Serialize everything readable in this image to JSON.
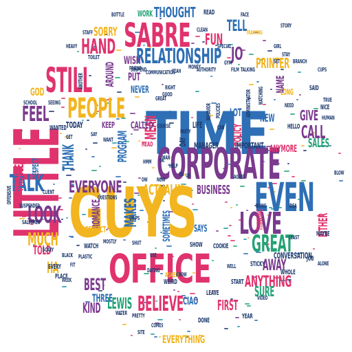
{
  "palette": {
    "pink": "#e0336e",
    "blue": "#2e6fb5",
    "yellow": "#f2b51f",
    "purple": "#7a3a8e",
    "green": "#23a275",
    "navy": "#1e3a6e",
    "teal": "#1e9aa5"
  },
  "words": [
    {
      "text": "TIME",
      "color": "blue"
    },
    {
      "text": "GUYS",
      "color": "yellow"
    },
    {
      "text": "OFFICE",
      "color": "pink"
    },
    {
      "text": "LITTLE",
      "color": "pink"
    },
    {
      "text": "CORPORATE",
      "color": "purple"
    },
    {
      "text": "EVEN",
      "color": "blue"
    },
    {
      "text": "SABRE",
      "color": "pink"
    },
    {
      "text": "STILL",
      "color": "pink"
    },
    {
      "text": "PEOPLE",
      "color": "yellow"
    },
    {
      "text": "LOVE",
      "color": "purple"
    },
    {
      "text": "TALK",
      "color": "blue"
    },
    {
      "text": "RELATIONSHIP",
      "color": "blue"
    },
    {
      "text": "FEEL",
      "color": "purple"
    },
    {
      "text": "LOOK",
      "color": "purple"
    },
    {
      "text": "HAND",
      "color": "pink"
    },
    {
      "text": "GREAT",
      "color": "green"
    },
    {
      "text": "BELIEVE",
      "color": "pink"
    },
    {
      "text": "EVERYONE",
      "color": "purple"
    },
    {
      "text": "THOUGHT",
      "color": "blue"
    },
    {
      "text": "JO",
      "color": "purple"
    },
    {
      "text": "MUCH",
      "color": "yellow"
    },
    {
      "text": "ACTUALLY",
      "color": "yellow"
    },
    {
      "text": "ANYTHING",
      "color": "pink"
    },
    {
      "text": "MAKES",
      "color": "blue"
    },
    {
      "text": "CALL",
      "color": "purple"
    },
    {
      "text": "BEST",
      "color": "purple"
    },
    {
      "text": "FUN",
      "color": "pink"
    },
    {
      "text": "TELL",
      "color": "blue"
    },
    {
      "text": "PRINTER",
      "color": "yellow"
    },
    {
      "text": "AWAY",
      "color": "purple"
    },
    {
      "text": "MEAN",
      "color": "pink"
    },
    {
      "text": "EVERYTHING",
      "color": "yellow"
    },
    {
      "text": "LEWIS",
      "color": "green"
    },
    {
      "text": "KIND",
      "color": "purple"
    },
    {
      "text": "THREE",
      "color": "blue"
    },
    {
      "text": "BUSINESS",
      "color": "purple"
    },
    {
      "text": "FIRST",
      "color": "pink"
    },
    {
      "text": "CONVERSATION",
      "color": "navy"
    },
    {
      "text": "SURE",
      "color": "green"
    },
    {
      "text": "POLICY",
      "color": "pink"
    },
    {
      "text": "SALES",
      "color": "green"
    },
    {
      "text": "GIVE",
      "color": "purple"
    },
    {
      "text": "EITHER",
      "color": "pink"
    },
    {
      "text": "THANK",
      "color": "blue"
    },
    {
      "text": "PROGRAM",
      "color": "blue"
    },
    {
      "text": "PROBLEM",
      "color": "pink"
    },
    {
      "text": "SORRY",
      "color": "yellow"
    },
    {
      "text": "WISH",
      "color": "purple"
    },
    {
      "text": "ROMANCE",
      "color": "purple"
    },
    {
      "text": "CALLED",
      "color": "purple"
    },
    {
      "text": "KEEP",
      "color": "purple"
    },
    {
      "text": "TOLD",
      "color": "pink"
    },
    {
      "text": "HA",
      "color": "yellow"
    },
    {
      "text": "CIAO",
      "color": "blue"
    },
    {
      "text": "NEW",
      "color": "blue"
    },
    {
      "text": "LOT",
      "color": "blue"
    },
    {
      "text": "NAME",
      "color": "purple"
    },
    {
      "text": "PUT",
      "color": "purple"
    },
    {
      "text": "NEVER",
      "color": "blue"
    },
    {
      "text": "GOD",
      "color": "yellow"
    },
    {
      "text": "ANYMORE",
      "color": "pink"
    },
    {
      "text": "MANAGER",
      "color": "navy"
    },
    {
      "text": "IMPORTANT",
      "color": "navy"
    },
    {
      "text": "AROUND",
      "color": "purple"
    },
    {
      "text": "TODAY",
      "color": "navy"
    },
    {
      "text": "RESPECT",
      "color": "blue"
    },
    {
      "text": "SOMETIMES",
      "color": "blue"
    },
    {
      "text": "LEAVE",
      "color": "navy"
    },
    {
      "text": "START",
      "color": "navy"
    },
    {
      "text": "YEAR",
      "color": "navy"
    },
    {
      "text": "JOB",
      "color": "navy"
    },
    {
      "text": "SAYS",
      "color": "blue"
    },
    {
      "text": "WEIRD",
      "color": "navy"
    },
    {
      "text": "ASKED",
      "color": "yellow"
    },
    {
      "text": "WHOLE",
      "color": "navy"
    },
    {
      "text": "STICKY",
      "color": "navy"
    },
    {
      "text": "COOKIE",
      "color": "navy"
    },
    {
      "text": "SHOW",
      "color": "navy"
    },
    {
      "text": "WORK",
      "color": "green"
    },
    {
      "text": "READ",
      "color": "navy"
    },
    {
      "text": "DONE",
      "color": "navy"
    },
    {
      "text": "PERFECT",
      "color": "yellow"
    },
    {
      "text": "WATCH",
      "color": "navy"
    },
    {
      "text": "PLACE",
      "color": "navy"
    },
    {
      "text": "EVERY",
      "color": "navy"
    },
    {
      "text": "STAFF",
      "color": "navy"
    },
    {
      "text": "HEAVY",
      "color": "navy"
    },
    {
      "text": "TOILET",
      "color": "navy"
    },
    {
      "text": "BOTTLE",
      "color": "navy"
    },
    {
      "text": "TRAINING",
      "color": "yellow"
    },
    {
      "text": "CLEAN",
      "color": "navy"
    },
    {
      "text": "SPECIAL",
      "color": "navy"
    },
    {
      "text": "TALKING",
      "color": "navy"
    },
    {
      "text": "FILM",
      "color": "navy"
    },
    {
      "text": "AUTHORITY",
      "color": "navy"
    },
    {
      "text": "MONEY",
      "color": "navy"
    },
    {
      "text": "COMMUNICATION",
      "color": "navy"
    },
    {
      "text": "SUSPEND",
      "color": "navy"
    },
    {
      "text": "FRIEND",
      "color": "navy"
    },
    {
      "text": "ADMINISTRATOR",
      "color": "navy"
    },
    {
      "text": "WATCHING",
      "color": "navy"
    },
    {
      "text": "POLICIES",
      "color": "navy"
    },
    {
      "text": "BEHAVIOR",
      "color": "navy"
    },
    {
      "text": "PARTY",
      "color": "navy"
    },
    {
      "text": "DAY",
      "color": "navy"
    },
    {
      "text": "LIFE",
      "color": "navy"
    },
    {
      "text": "COURSE",
      "color": "navy"
    },
    {
      "text": "HEAD",
      "color": "pink"
    },
    {
      "text": "ANOTHER",
      "color": "navy"
    },
    {
      "text": "WANTED",
      "color": "navy"
    },
    {
      "text": "BRING",
      "color": "navy"
    },
    {
      "text": "IDEA",
      "color": "navy"
    },
    {
      "text": "AGREE",
      "color": "navy"
    },
    {
      "text": "HELLO",
      "color": "navy"
    },
    {
      "text": "HUMAN",
      "color": "navy"
    },
    {
      "text": "NICE",
      "color": "navy"
    },
    {
      "text": "TRUE",
      "color": "navy"
    },
    {
      "text": "SAID",
      "color": "navy"
    },
    {
      "text": "LONG",
      "color": "yellow"
    },
    {
      "text": "BLOW",
      "color": "navy"
    },
    {
      "text": "GIRL",
      "color": "navy"
    },
    {
      "text": "STAY",
      "color": "navy"
    },
    {
      "text": "CUPS",
      "color": "navy"
    },
    {
      "text": "SET",
      "color": "navy"
    },
    {
      "text": "BRANCH",
      "color": "navy"
    },
    {
      "text": "THINKING",
      "color": "pink"
    },
    {
      "text": "MAYBE",
      "color": "navy"
    },
    {
      "text": "LEAST",
      "color": "navy"
    },
    {
      "text": "ALONE",
      "color": "navy"
    },
    {
      "text": "BLACK",
      "color": "navy"
    },
    {
      "text": "PLASTIC",
      "color": "navy"
    },
    {
      "text": "MOSTLY",
      "color": "navy"
    },
    {
      "text": "SHUT",
      "color": "navy"
    },
    {
      "text": "HELP",
      "color": "navy"
    },
    {
      "text": "FIT",
      "color": "navy"
    },
    {
      "text": "CLIENT",
      "color": "navy"
    },
    {
      "text": "SALESMEN",
      "color": "navy"
    },
    {
      "text": "SUSPENDED",
      "color": "navy"
    },
    {
      "text": "OFFENSIVE",
      "color": "navy"
    },
    {
      "text": "QUESTIONS",
      "color": "navy"
    },
    {
      "text": "QUIPS",
      "color": "navy"
    },
    {
      "text": "SCHOOL",
      "color": "navy"
    },
    {
      "text": "SEEING",
      "color": "navy"
    },
    {
      "text": "WEEK",
      "color": "navy"
    },
    {
      "text": "PRETTY",
      "color": "navy"
    },
    {
      "text": "WATER",
      "color": "navy"
    },
    {
      "text": "COMES",
      "color": "navy"
    },
    {
      "text": "STORY",
      "color": "navy"
    },
    {
      "text": "VIDEO",
      "color": "navy"
    },
    {
      "text": "FACE",
      "color": "navy"
    },
    {
      "text": "GYM",
      "color": "navy"
    },
    {
      "text": "SCARY",
      "color": "navy"
    },
    {
      "text": "DATING",
      "color": "navy"
    },
    {
      "text": "SITE",
      "color": "navy"
    },
    {
      "text": "USE",
      "color": "navy"
    },
    {
      "text": "HMM",
      "color": "navy"
    },
    {
      "text": "OW",
      "color": "navy"
    },
    {
      "text": "NOW",
      "color": "navy"
    },
    {
      "text": "OH",
      "color": "navy"
    },
    {
      "text": "UH",
      "color": "navy"
    },
    {
      "text": "OK",
      "color": "navy"
    },
    {
      "text": "YEAH",
      "color": "navy"
    },
    {
      "text": "WELL",
      "color": "navy"
    },
    {
      "text": "KNOW",
      "color": "navy"
    },
    {
      "text": "CAN",
      "color": "navy"
    },
    {
      "text": "NEED",
      "color": "navy"
    },
    {
      "text": "SAY",
      "color": "navy"
    },
    {
      "text": "GET",
      "color": "navy"
    },
    {
      "text": "WANT",
      "color": "navy"
    },
    {
      "text": "RIGHT",
      "color": "navy"
    },
    {
      "text": "GOOD",
      "color": "navy"
    },
    {
      "text": "GREAT",
      "color": "navy"
    },
    {
      "text": "MAN",
      "color": "navy"
    }
  ]
}
